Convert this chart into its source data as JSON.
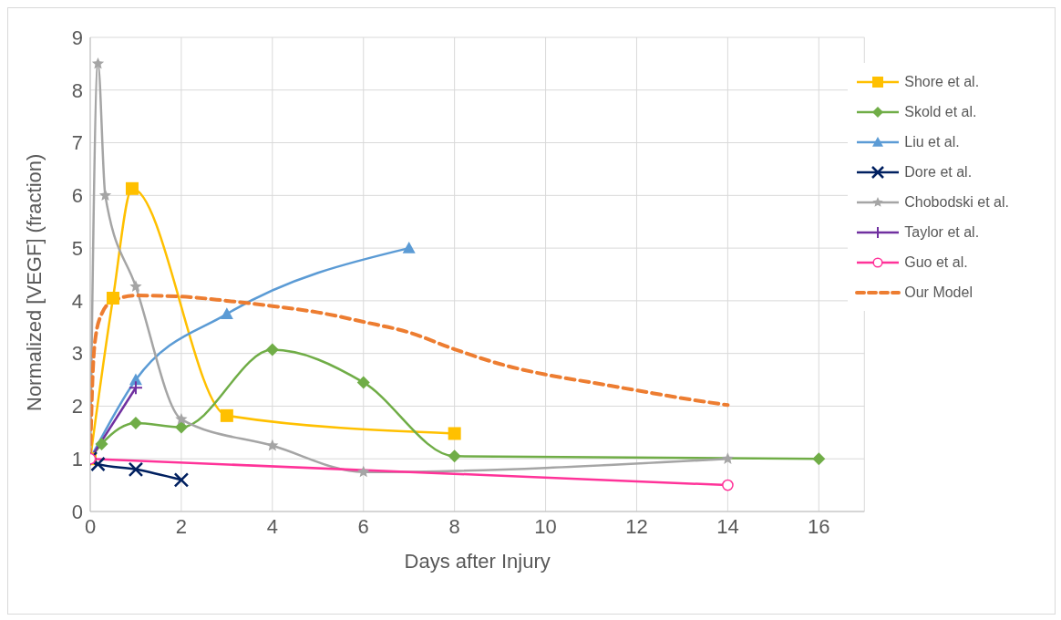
{
  "chart_data": {
    "type": "line",
    "xlabel": "Days after Injury",
    "ylabel": "Normalized [VEGF] (fraction)",
    "xlim": [
      0,
      17
    ],
    "xticks": [
      0,
      2,
      4,
      6,
      8,
      10,
      12,
      14,
      16
    ],
    "ylim": [
      0,
      9
    ],
    "yticks": [
      0,
      1,
      2,
      3,
      4,
      5,
      6,
      7,
      8,
      9
    ],
    "grid": true,
    "legend": "right",
    "series": [
      {
        "name": "Shore et al.",
        "color": "#ffc000",
        "marker": "square",
        "x": [
          0,
          0.5,
          0.92,
          3,
          8
        ],
        "values": [
          1,
          4.05,
          6.13,
          1.82,
          1.48
        ]
      },
      {
        "name": "Skold et al.",
        "color": "#70ad47",
        "marker": "diamond",
        "x": [
          0,
          0.25,
          1,
          2,
          4,
          6,
          8,
          16
        ],
        "values": [
          1,
          1.28,
          1.68,
          1.6,
          3.07,
          2.45,
          1.05,
          1
        ]
      },
      {
        "name": "Liu et al.",
        "color": "#5b9bd5",
        "marker": "triangle",
        "x": [
          0,
          1,
          3,
          7
        ],
        "values": [
          1,
          2.5,
          3.75,
          5
        ]
      },
      {
        "name": "Dore et al.",
        "color": "#002060",
        "marker": "cross",
        "x": [
          0,
          0.17,
          1,
          2
        ],
        "values": [
          1,
          0.9,
          0.8,
          0.6
        ]
      },
      {
        "name": "Chobodski et al.",
        "color": "#a5a5a5",
        "marker": "star",
        "x": [
          0,
          0.17,
          0.33,
          1,
          2,
          4,
          6,
          14
        ],
        "values": [
          1,
          8.5,
          6,
          4.27,
          1.75,
          1.25,
          0.75,
          1
        ]
      },
      {
        "name": "Taylor et al.",
        "color": "#7030a0",
        "marker": "plus",
        "x": [
          0,
          1
        ],
        "values": [
          1,
          2.35
        ]
      },
      {
        "name": "Guo et al.",
        "color": "#ff3399",
        "marker": "circle",
        "x": [
          0,
          14
        ],
        "values": [
          1,
          0.5
        ]
      },
      {
        "name": "Our Model",
        "color": "#ed7d31",
        "marker": "none",
        "line_style": "dashed",
        "x": [
          0,
          0.05,
          0.1,
          0.25,
          0.5,
          1,
          2,
          3,
          4,
          5,
          6,
          7,
          8,
          9,
          10,
          11,
          12,
          13,
          14
        ],
        "values": [
          1,
          2.5,
          3.2,
          3.75,
          4.0,
          4.1,
          4.08,
          4.0,
          3.9,
          3.78,
          3.6,
          3.4,
          3.08,
          2.8,
          2.6,
          2.45,
          2.3,
          2.15,
          2.02
        ]
      }
    ]
  }
}
